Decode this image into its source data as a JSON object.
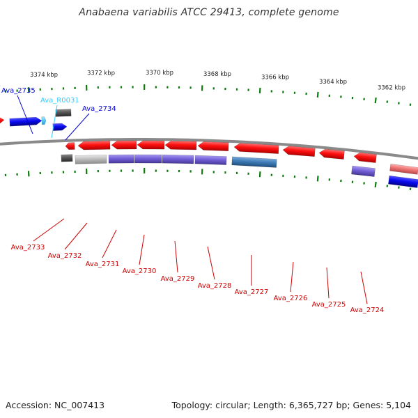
{
  "title": "Anabaena variabilis ATCC 29413, complete genome",
  "footer": {
    "accession": "Accession: NC_007413",
    "summary": "Topology: circular; Length: 6,365,727 bp; Genes: 5,104"
  },
  "colors": {
    "forward_gene": "#1515e6",
    "reverse_gene": "#ff1a1a",
    "forward_label": "#0000cc",
    "reverse_label": "#cc0000",
    "rna": "#33ccff",
    "pseudo": "#555555",
    "tick": "#0e7a0e",
    "backbone": "#8a8a8a"
  },
  "scale_labels": [
    "3374 kbp",
    "3372 kbp",
    "3370 kbp",
    "3368 kbp",
    "3366 kbp",
    "3364 kbp",
    "3362 kbp"
  ],
  "forward_labels": [
    "Ava_2735",
    "Ava_R0031",
    "Ava_2734"
  ],
  "reverse_labels": [
    "Ava_2733",
    "Ava_2732",
    "Ava_2731",
    "Ava_2730",
    "Ava_2729",
    "Ava_2728",
    "Ava_2727",
    "Ava_2726",
    "Ava_2725",
    "Ava_2724"
  ]
}
